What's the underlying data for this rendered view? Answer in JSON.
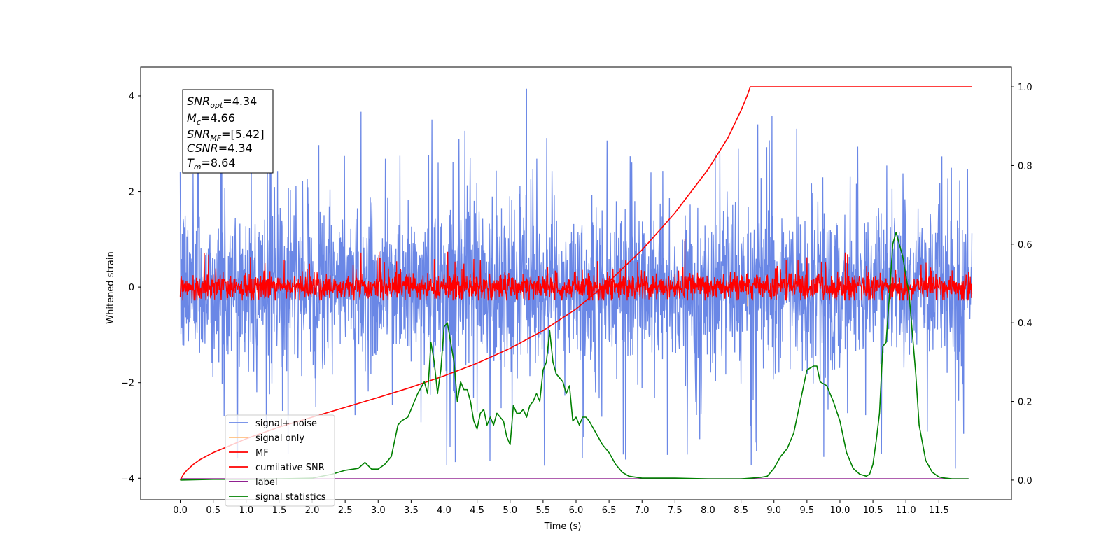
{
  "chart_data": {
    "type": "line",
    "xlabel": "Time (s)",
    "ylabel": "Whitened strain",
    "xlim": [
      -0.6,
      12.6
    ],
    "ylim_left": [
      -4.45,
      4.6
    ],
    "ylim_right": [
      -0.05,
      1.05
    ],
    "x_ticks": [
      "0.0",
      "0.5",
      "1.0",
      "1.5",
      "2.0",
      "2.5",
      "3.0",
      "3.5",
      "4.0",
      "4.5",
      "5.0",
      "5.5",
      "6.0",
      "6.5",
      "7.0",
      "7.5",
      "8.0",
      "8.5",
      "9.0",
      "9.5",
      "10.0",
      "10.5",
      "11.0",
      "11.5"
    ],
    "y_ticks_left": [
      "−4",
      "−2",
      "0",
      "2",
      "4"
    ],
    "y_ticks_right": [
      "0.0",
      "0.2",
      "0.4",
      "0.6",
      "0.8",
      "1.0"
    ],
    "colors": {
      "signal_noise": "#6a87e6",
      "signal_only": "#ffbf7f",
      "mf": "#ff0000",
      "cumulative_snr": "#ff0000",
      "label": "#800080",
      "signal_statistics": "#008000"
    },
    "legend": {
      "placement": "lower-left",
      "entries": [
        {
          "key": "signal_noise",
          "label": "signal+ noise"
        },
        {
          "key": "signal_only",
          "label": "signal only"
        },
        {
          "key": "mf",
          "label": "MF"
        },
        {
          "key": "cumulative_snr",
          "label": "cumilative SNR"
        },
        {
          "key": "label",
          "label": "label"
        },
        {
          "key": "signal_statistics",
          "label": "signal statistics"
        }
      ]
    },
    "annotation": {
      "snr_opt": {
        "base": "SNR",
        "sub": "opt",
        "value": "=4.34"
      },
      "mc": {
        "base": "M",
        "sub": "c",
        "value": "=4.66"
      },
      "snr_mf": {
        "base": "SNR",
        "sub": "MF",
        "value": "=[5.42]"
      },
      "csnr": {
        "base": "CSNR",
        "value": "=4.34"
      },
      "tm": {
        "base": "T",
        "sub": "m",
        "value": "=8.64"
      }
    },
    "series": {
      "signal_noise": {
        "axis": "left",
        "x_range": [
          0.0,
          12.0
        ],
        "center": 0.0,
        "band": 1.4,
        "peak_max": 4.15,
        "peak_min": -3.9
      },
      "mf": {
        "axis": "left",
        "x_range": [
          0.0,
          12.0
        ],
        "center": 0.0,
        "band": 0.28,
        "peak_max": 0.75,
        "spike": {
          "x": 7.65,
          "y": 1.0
        }
      },
      "signal_only": {
        "axis": "left",
        "blip": {
          "x": 8.6,
          "y": -0.4
        }
      },
      "cumulative_snr": {
        "axis": "right",
        "x": [
          0.0,
          0.05,
          0.1,
          0.2,
          0.3,
          0.5,
          1.0,
          1.5,
          2.0,
          2.5,
          3.0,
          3.5,
          4.0,
          4.5,
          5.0,
          5.5,
          6.0,
          6.5,
          7.0,
          7.5,
          8.0,
          8.3,
          8.5,
          8.6,
          8.64,
          12.0
        ],
        "y": [
          0.0,
          0.015,
          0.025,
          0.04,
          0.052,
          0.07,
          0.105,
          0.135,
          0.16,
          0.185,
          0.21,
          0.236,
          0.265,
          0.297,
          0.335,
          0.38,
          0.435,
          0.505,
          0.585,
          0.68,
          0.79,
          0.87,
          0.94,
          0.98,
          1.0,
          1.0
        ]
      },
      "label": {
        "axis": "right",
        "x": [
          0.0,
          11.95
        ],
        "y": [
          0.003,
          0.003
        ]
      },
      "signal_statistics": {
        "axis": "right",
        "x": [
          0.0,
          0.5,
          1.0,
          1.5,
          2.0,
          2.3,
          2.5,
          2.7,
          2.8,
          2.9,
          3.0,
          3.1,
          3.2,
          3.3,
          3.35,
          3.45,
          3.55,
          3.6,
          3.7,
          3.75,
          3.8,
          3.85,
          3.9,
          3.95,
          4.0,
          4.05,
          4.1,
          4.15,
          4.2,
          4.25,
          4.3,
          4.35,
          4.4,
          4.45,
          4.5,
          4.55,
          4.6,
          4.65,
          4.7,
          4.75,
          4.8,
          4.85,
          4.9,
          4.95,
          5.0,
          5.05,
          5.1,
          5.15,
          5.2,
          5.25,
          5.3,
          5.35,
          5.4,
          5.45,
          5.5,
          5.55,
          5.6,
          5.65,
          5.7,
          5.75,
          5.8,
          5.85,
          5.9,
          5.95,
          6.0,
          6.05,
          6.1,
          6.15,
          6.2,
          6.3,
          6.4,
          6.5,
          6.6,
          6.7,
          6.8,
          7.0,
          7.5,
          8.0,
          8.5,
          8.8,
          8.9,
          9.0,
          9.1,
          9.2,
          9.3,
          9.4,
          9.5,
          9.6,
          9.65,
          9.7,
          9.8,
          9.9,
          10.0,
          10.1,
          10.2,
          10.3,
          10.4,
          10.45,
          10.5,
          10.55,
          10.6,
          10.65,
          10.7,
          10.75,
          10.8,
          10.85,
          10.9,
          10.95,
          11.0,
          11.05,
          11.1,
          11.15,
          11.2,
          11.3,
          11.4,
          11.5,
          11.6,
          11.7,
          11.8,
          11.9,
          11.95
        ],
        "y": [
          0.0,
          0.002,
          0.002,
          0.003,
          0.005,
          0.015,
          0.025,
          0.03,
          0.045,
          0.028,
          0.028,
          0.04,
          0.06,
          0.14,
          0.15,
          0.16,
          0.2,
          0.22,
          0.25,
          0.22,
          0.35,
          0.3,
          0.22,
          0.28,
          0.39,
          0.4,
          0.35,
          0.3,
          0.2,
          0.25,
          0.23,
          0.23,
          0.2,
          0.15,
          0.13,
          0.17,
          0.18,
          0.14,
          0.16,
          0.14,
          0.17,
          0.16,
          0.15,
          0.11,
          0.09,
          0.19,
          0.17,
          0.17,
          0.18,
          0.16,
          0.19,
          0.2,
          0.22,
          0.2,
          0.28,
          0.3,
          0.38,
          0.3,
          0.27,
          0.26,
          0.25,
          0.22,
          0.24,
          0.15,
          0.16,
          0.14,
          0.16,
          0.16,
          0.15,
          0.12,
          0.09,
          0.07,
          0.04,
          0.02,
          0.01,
          0.005,
          0.005,
          0.003,
          0.003,
          0.007,
          0.01,
          0.03,
          0.06,
          0.08,
          0.12,
          0.2,
          0.28,
          0.29,
          0.29,
          0.25,
          0.24,
          0.2,
          0.15,
          0.07,
          0.03,
          0.015,
          0.01,
          0.015,
          0.04,
          0.1,
          0.17,
          0.34,
          0.35,
          0.47,
          0.6,
          0.63,
          0.6,
          0.57,
          0.52,
          0.47,
          0.37,
          0.27,
          0.14,
          0.05,
          0.02,
          0.008,
          0.005,
          0.003,
          0.003,
          0.003,
          0.003
        ]
      }
    }
  }
}
